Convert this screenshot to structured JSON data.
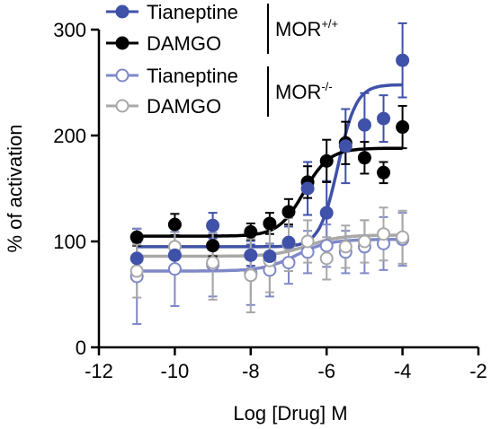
{
  "chart_data": {
    "type": "scatter",
    "xlabel": "Log [Drug] M",
    "ylabel": "% of activation",
    "xlim": [
      -12,
      -2
    ],
    "ylim": [
      0,
      300
    ],
    "x_ticks": [
      -12,
      -10,
      -8,
      -6,
      -4,
      -2
    ],
    "y_ticks": [
      0,
      100,
      200,
      300
    ],
    "legend": {
      "placement": "top-left",
      "group1_label": "MOR",
      "group1_sup": "+/+",
      "group2_label": "MOR",
      "group2_sup": "-/-"
    },
    "series": [
      {
        "name": "Tianeptine",
        "group": "MOR+/+",
        "color": "#3f51a8",
        "marker": "filled",
        "x": [
          -11,
          -10,
          -9,
          -8,
          -7.5,
          -7,
          -6.5,
          -6,
          -5.5,
          -5,
          -4.5,
          -4
        ],
        "y": [
          84,
          87,
          115,
          87,
          86,
          99,
          150,
          127,
          190,
          210,
          216,
          271
        ],
        "err": [
          15,
          12,
          12,
          10,
          10,
          15,
          25,
          30,
          35,
          30,
          22,
          35
        ],
        "fit": {
          "bottom": 95,
          "top": 248,
          "logec50": -5.7,
          "hill": 1.8
        }
      },
      {
        "name": "DAMGO",
        "group": "MOR+/+",
        "color": "#000000",
        "marker": "filled",
        "x": [
          -11,
          -10,
          -9,
          -8,
          -7.5,
          -7,
          -6.5,
          -6,
          -5.5,
          -5,
          -4.5,
          -4
        ],
        "y": [
          104,
          116,
          96,
          109,
          117,
          128,
          156,
          176,
          193,
          179,
          165,
          208
        ],
        "err": [
          8,
          10,
          10,
          8,
          10,
          12,
          15,
          20,
          20,
          15,
          10,
          20
        ],
        "fit": {
          "bottom": 105,
          "top": 188,
          "logec50": -6.6,
          "hill": 1.3
        }
      },
      {
        "name": "Tianeptine",
        "group": "MOR-/-",
        "color": "#7f88c8",
        "marker": "open",
        "x": [
          -11,
          -10,
          -9,
          -8,
          -7.5,
          -7,
          -6.5,
          -6,
          -5.5,
          -5,
          -4.5,
          -4
        ],
        "y": [
          67,
          74,
          78,
          70,
          73,
          80,
          90,
          96,
          90,
          95,
          98,
          102
        ],
        "err": [
          45,
          35,
          30,
          30,
          25,
          20,
          20,
          20,
          20,
          25,
          25,
          25
        ],
        "fit": {
          "bottom": 72,
          "top": 102,
          "logec50": -6.8,
          "hill": 1.0
        }
      },
      {
        "name": "DAMGO",
        "group": "MOR-/-",
        "color": "#a8a8a8",
        "marker": "open",
        "x": [
          -11,
          -10,
          -9,
          -8,
          -7.5,
          -7,
          -6.5,
          -6,
          -5.5,
          -5,
          -4.5,
          -4
        ],
        "y": [
          72,
          95,
          80,
          68,
          82,
          97,
          100,
          84,
          95,
          100,
          107,
          104
        ],
        "err": [
          25,
          25,
          35,
          35,
          30,
          25,
          20,
          20,
          20,
          20,
          25,
          25
        ],
        "fit": {
          "bottom": 86,
          "top": 106,
          "logec50": -6.5,
          "hill": 1.0
        }
      }
    ]
  }
}
